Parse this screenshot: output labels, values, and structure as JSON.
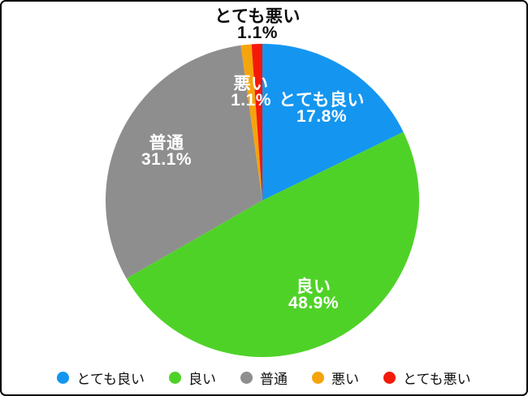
{
  "chart_data": {
    "type": "pie",
    "labels": [
      "とても良い",
      "良い",
      "普通",
      "悪い",
      "とても悪い"
    ],
    "values": [
      17.8,
      48.9,
      31.1,
      1.1,
      1.1
    ],
    "pct_labels": [
      "17.8%",
      "48.9%",
      "31.1%",
      "1.1%",
      "1.1%"
    ],
    "colors": [
      "#1496F0",
      "#4FD228",
      "#8E8E8E",
      "#F5A40C",
      "#F5190A"
    ],
    "start_angle_deg": 0,
    "direction": "clockwise",
    "legend_position": "bottom",
    "slice_label_text_color_inside": "#FFFFFF",
    "slice_label_text_color_outside": "#000000"
  },
  "legend": {
    "items": [
      {
        "label": "とても良い",
        "color": "#1496F0"
      },
      {
        "label": "良い",
        "color": "#4FD228"
      },
      {
        "label": "普通",
        "color": "#8E8E8E"
      },
      {
        "label": "悪い",
        "color": "#F5A40C"
      },
      {
        "label": "とても悪い",
        "color": "#F5190A"
      }
    ]
  }
}
